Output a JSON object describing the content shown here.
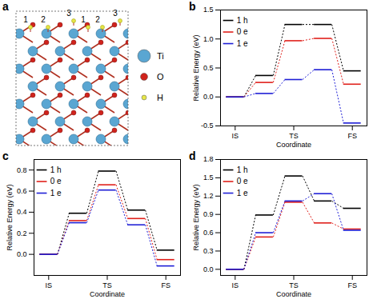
{
  "panel_a": {
    "label": "a",
    "site_labels": [
      "1",
      "2",
      "3",
      "1",
      "2",
      "3"
    ],
    "legend": [
      {
        "name": "Ti",
        "color": "#5aa6d2"
      },
      {
        "name": "O",
        "color": "#d0231c"
      },
      {
        "name": "H",
        "color": "#e6e648"
      }
    ]
  },
  "chart_data": [
    {
      "type": "line",
      "panel_label": "b",
      "xlabel": "Coordinate",
      "ylabel": "Relative Energy (eV)",
      "categories": [
        "IS",
        null,
        "TS",
        null,
        "FS"
      ],
      "series": [
        {
          "name": "1 h",
          "color": "#000000",
          "values": [
            0,
            0.37,
            1.25,
            1.25,
            0.45
          ]
        },
        {
          "name": "0 e",
          "color": "#e0201b",
          "values": [
            0,
            0.25,
            0.97,
            1.01,
            0.22
          ]
        },
        {
          "name": "1 e",
          "color": "#1f1fd6",
          "values": [
            0,
            0.06,
            0.3,
            0.47,
            -0.45
          ]
        }
      ],
      "ylim": [
        -0.5,
        1.5
      ],
      "yticks": [
        -0.5,
        {
          "value": 0,
          "label": "0.0"
        },
        0.5,
        {
          "value": 1,
          "label": "1.0"
        },
        1.5
      ],
      "legend": "upper left",
      "line_style": "dashed"
    },
    {
      "type": "line",
      "panel_label": "c",
      "xlabel": "Coordinate",
      "ylabel": "Relative Energy (eV)",
      "categories": [
        "IS",
        null,
        "TS",
        null,
        "FS"
      ],
      "series": [
        {
          "name": "1 h",
          "color": "#000000",
          "values": [
            0,
            0.39,
            0.79,
            0.42,
            0.04
          ]
        },
        {
          "name": "0 e",
          "color": "#e0201b",
          "values": [
            0,
            0.32,
            0.66,
            0.34,
            -0.05
          ]
        },
        {
          "name": "1 e",
          "color": "#1f1fd6",
          "values": [
            0,
            0.3,
            0.61,
            0.28,
            -0.11
          ]
        }
      ],
      "ylim": [
        -0.2,
        0.9
      ],
      "yticks": [
        {
          "value": 0,
          "label": "0.0"
        },
        0.2,
        0.4,
        0.6,
        0.8
      ],
      "legend": "upper left",
      "line_style": "dashed"
    },
    {
      "type": "line",
      "panel_label": "d",
      "xlabel": "Coordinate",
      "ylabel": "Relative Energy (eV)",
      "categories": [
        "IS",
        null,
        "TS",
        null,
        "FS"
      ],
      "series": [
        {
          "name": "1 h",
          "color": "#000000",
          "values": [
            0,
            0.89,
            1.53,
            1.12,
            1.0
          ]
        },
        {
          "name": "0 e",
          "color": "#e0201b",
          "values": [
            0,
            0.53,
            1.1,
            0.76,
            0.66
          ]
        },
        {
          "name": "1 e",
          "color": "#1f1fd6",
          "values": [
            0,
            0.6,
            1.12,
            1.24,
            0.64
          ]
        }
      ],
      "ylim": [
        -0.1,
        1.8
      ],
      "yticks": [
        {
          "value": 0,
          "label": "0.0"
        },
        0.3,
        0.6,
        0.9,
        1.2,
        1.5,
        1.8
      ],
      "legend": "upper left",
      "line_style": "dashed"
    }
  ]
}
